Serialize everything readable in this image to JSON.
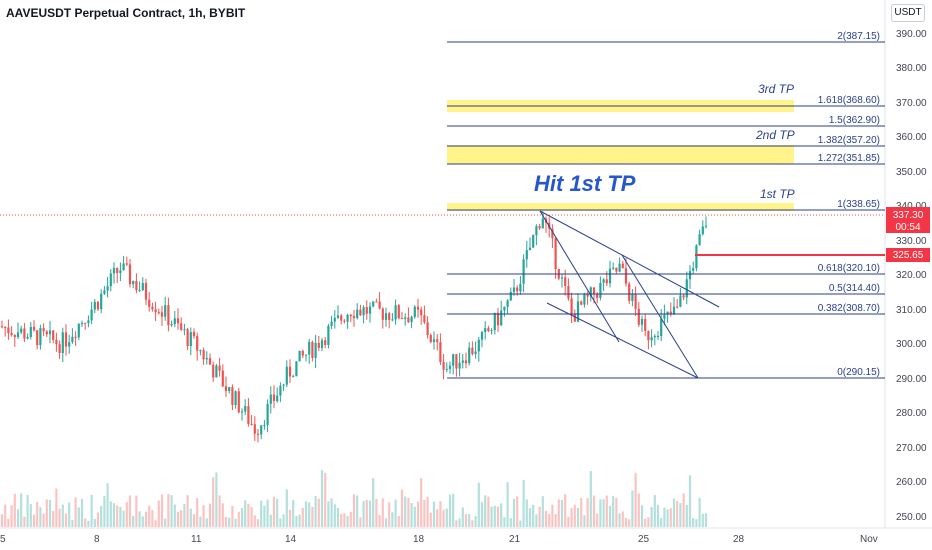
{
  "header": {
    "symbol_title": "AAVEUSDT Perpetual Contract, 1h, BYBIT",
    "currency_button": "USDT"
  },
  "price_axis": {
    "ticks": [
      "390.00",
      "380.00",
      "370.00",
      "360.00",
      "350.00",
      "340.00",
      "330.00",
      "320.00",
      "310.00",
      "300.00",
      "290.00",
      "280.00",
      "270.00",
      "260.00",
      "250.00"
    ]
  },
  "time_axis": {
    "ticks": [
      "5",
      "8",
      "11",
      "14",
      "18",
      "21",
      "25",
      "28",
      "Nov"
    ]
  },
  "annotations": {
    "hit_text": "Hit 1st TP",
    "tp_labels": [
      "1st TP",
      "2nd TP",
      "3rd TP"
    ],
    "fib_levels": [
      {
        "label": "2(387.15)",
        "price": 387.15
      },
      {
        "label": "1.618(368.60)",
        "price": 368.6
      },
      {
        "label": "1.5(362.90)",
        "price": 362.9
      },
      {
        "label": "1.382(357.20)",
        "price": 357.2
      },
      {
        "label": "1.272(351.85)",
        "price": 351.85
      },
      {
        "label": "1(338.65)",
        "price": 338.65
      },
      {
        "label": "0.618(320.10)",
        "price": 320.1
      },
      {
        "label": "0.5(314.40)",
        "price": 314.4
      },
      {
        "label": "0.382(308.70)",
        "price": 308.7
      },
      {
        "label": "0(290.15)",
        "price": 290.15
      }
    ]
  },
  "price_tags": {
    "last_price": "337.30",
    "countdown": "00:54",
    "level_price": "325.65"
  },
  "colors": {
    "up": "#26a69a",
    "down": "#ef5350",
    "fib_line": "#2a3f8f",
    "tp_zone": "#fff176",
    "level_line": "#f23645"
  },
  "chart_data": {
    "type": "candlestick",
    "instrument": "AAVEUSDT Perpetual Contract",
    "timeframe": "1h",
    "exchange": "BYBIT",
    "ylim": [
      246,
      396
    ],
    "path_anchors": [
      {
        "x": "5",
        "y": 305
      },
      {
        "x": "7",
        "y": 300
      },
      {
        "x": "8",
        "y": 312
      },
      {
        "x": "9",
        "y": 322
      },
      {
        "x": "11",
        "y": 298
      },
      {
        "x": "12",
        "y": 285
      },
      {
        "x": "13",
        "y": 275
      },
      {
        "x": "14",
        "y": 292
      },
      {
        "x": "16",
        "y": 310
      },
      {
        "x": "18",
        "y": 308
      },
      {
        "x": "19",
        "y": 293
      },
      {
        "x": "20",
        "y": 300
      },
      {
        "x": "21",
        "y": 314
      },
      {
        "x": "22",
        "y": 338
      },
      {
        "x": "23",
        "y": 308
      },
      {
        "x": "24",
        "y": 322
      },
      {
        "x": "25",
        "y": 302
      },
      {
        "x": "26",
        "y": 310
      },
      {
        "x": "27",
        "y": 337
      }
    ],
    "last_price": 337.3,
    "horizontal_level": 325.65
  }
}
